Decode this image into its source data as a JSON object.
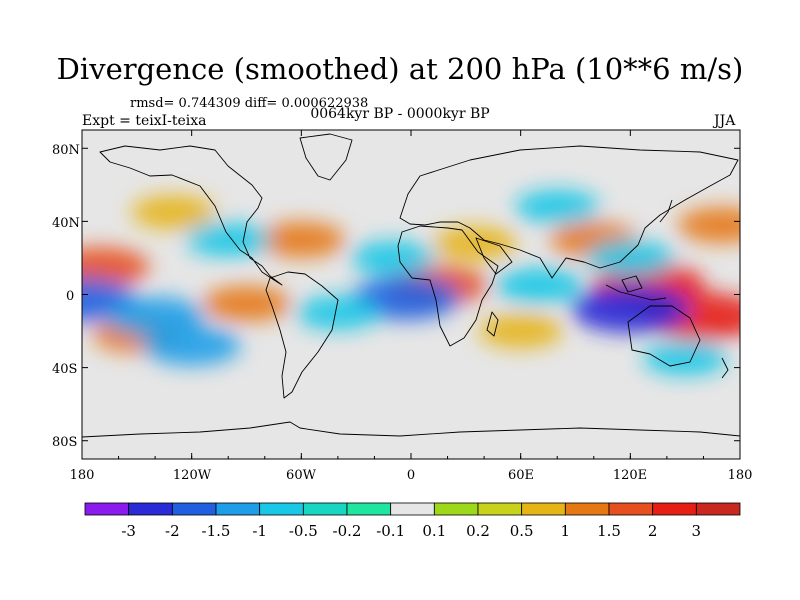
{
  "title": "Divergence (smoothed) at 200 hPa (10**6 m/s)",
  "stats": "rmsd= 0.744309 diff= 0.000622938",
  "period": "0064kyr BP - 0000kyr BP",
  "experiment": "Expt = teixI-teixa",
  "season": "JJA",
  "y_ticks": [
    "80N",
    "40N",
    "0",
    "40S",
    "80S"
  ],
  "x_ticks": [
    "180",
    "120W",
    "60W",
    "0",
    "60E",
    "120E",
    "180"
  ],
  "colorbar": {
    "labels": [
      "-3",
      "-2",
      "-1.5",
      "-1",
      "-0.5",
      "-0.2",
      "-0.1",
      "0.1",
      "0.2",
      "0.5",
      "1",
      "1.5",
      "2",
      "3"
    ],
    "colors": [
      "#8a1aee",
      "#2a2ad6",
      "#2060e0",
      "#1e9ee8",
      "#19c7e6",
      "#19d6c2",
      "#1ee6a0",
      "#e6e6e6",
      "#9ed81a",
      "#c8d21a",
      "#e6b414",
      "#e67814",
      "#e6501e",
      "#e61e14",
      "#c8281e"
    ]
  },
  "map_data": {
    "projection": "equirectangular",
    "lon_range": [
      -180,
      180
    ],
    "lat_range": [
      -90,
      90
    ],
    "field": "200 hPa divergence difference, smoothed",
    "features": [
      {
        "lon": 160,
        "lat": -12,
        "value": 2.5
      },
      {
        "lon": 130,
        "lat": 5,
        "value": 2.2
      },
      {
        "lon": -170,
        "lat": 15,
        "value": 1.5
      },
      {
        "lon": 15,
        "lat": 5,
        "value": 1.5
      },
      {
        "lon": -90,
        "lat": -5,
        "value": 1.0
      },
      {
        "lon": -150,
        "lat": -22,
        "value": 1.0
      },
      {
        "lon": 35,
        "lat": 28,
        "value": 0.8
      },
      {
        "lon": -60,
        "lat": 30,
        "value": 1.0
      },
      {
        "lon": 100,
        "lat": 30,
        "value": 1.0
      },
      {
        "lon": 170,
        "lat": 38,
        "value": 1.0
      },
      {
        "lon": 60,
        "lat": -20,
        "value": 0.8
      },
      {
        "lon": -130,
        "lat": 45,
        "value": 0.8
      },
      {
        "lon": 120,
        "lat": -8,
        "value": -2.5
      },
      {
        "lon": -180,
        "lat": -3,
        "value": -2.0
      },
      {
        "lon": -3,
        "lat": -2,
        "value": -2.0
      },
      {
        "lon": -140,
        "lat": -12,
        "value": -1.5
      },
      {
        "lon": -120,
        "lat": -28,
        "value": -1.5
      },
      {
        "lon": 120,
        "lat": 20,
        "value": -1.0
      },
      {
        "lon": 70,
        "lat": 5,
        "value": -1.0
      },
      {
        "lon": -40,
        "lat": -10,
        "value": -0.8
      },
      {
        "lon": -10,
        "lat": 20,
        "value": -0.8
      },
      {
        "lon": 80,
        "lat": 48,
        "value": -0.8
      },
      {
        "lon": -100,
        "lat": 30,
        "value": -0.8
      },
      {
        "lon": 150,
        "lat": -35,
        "value": -0.8
      }
    ]
  }
}
